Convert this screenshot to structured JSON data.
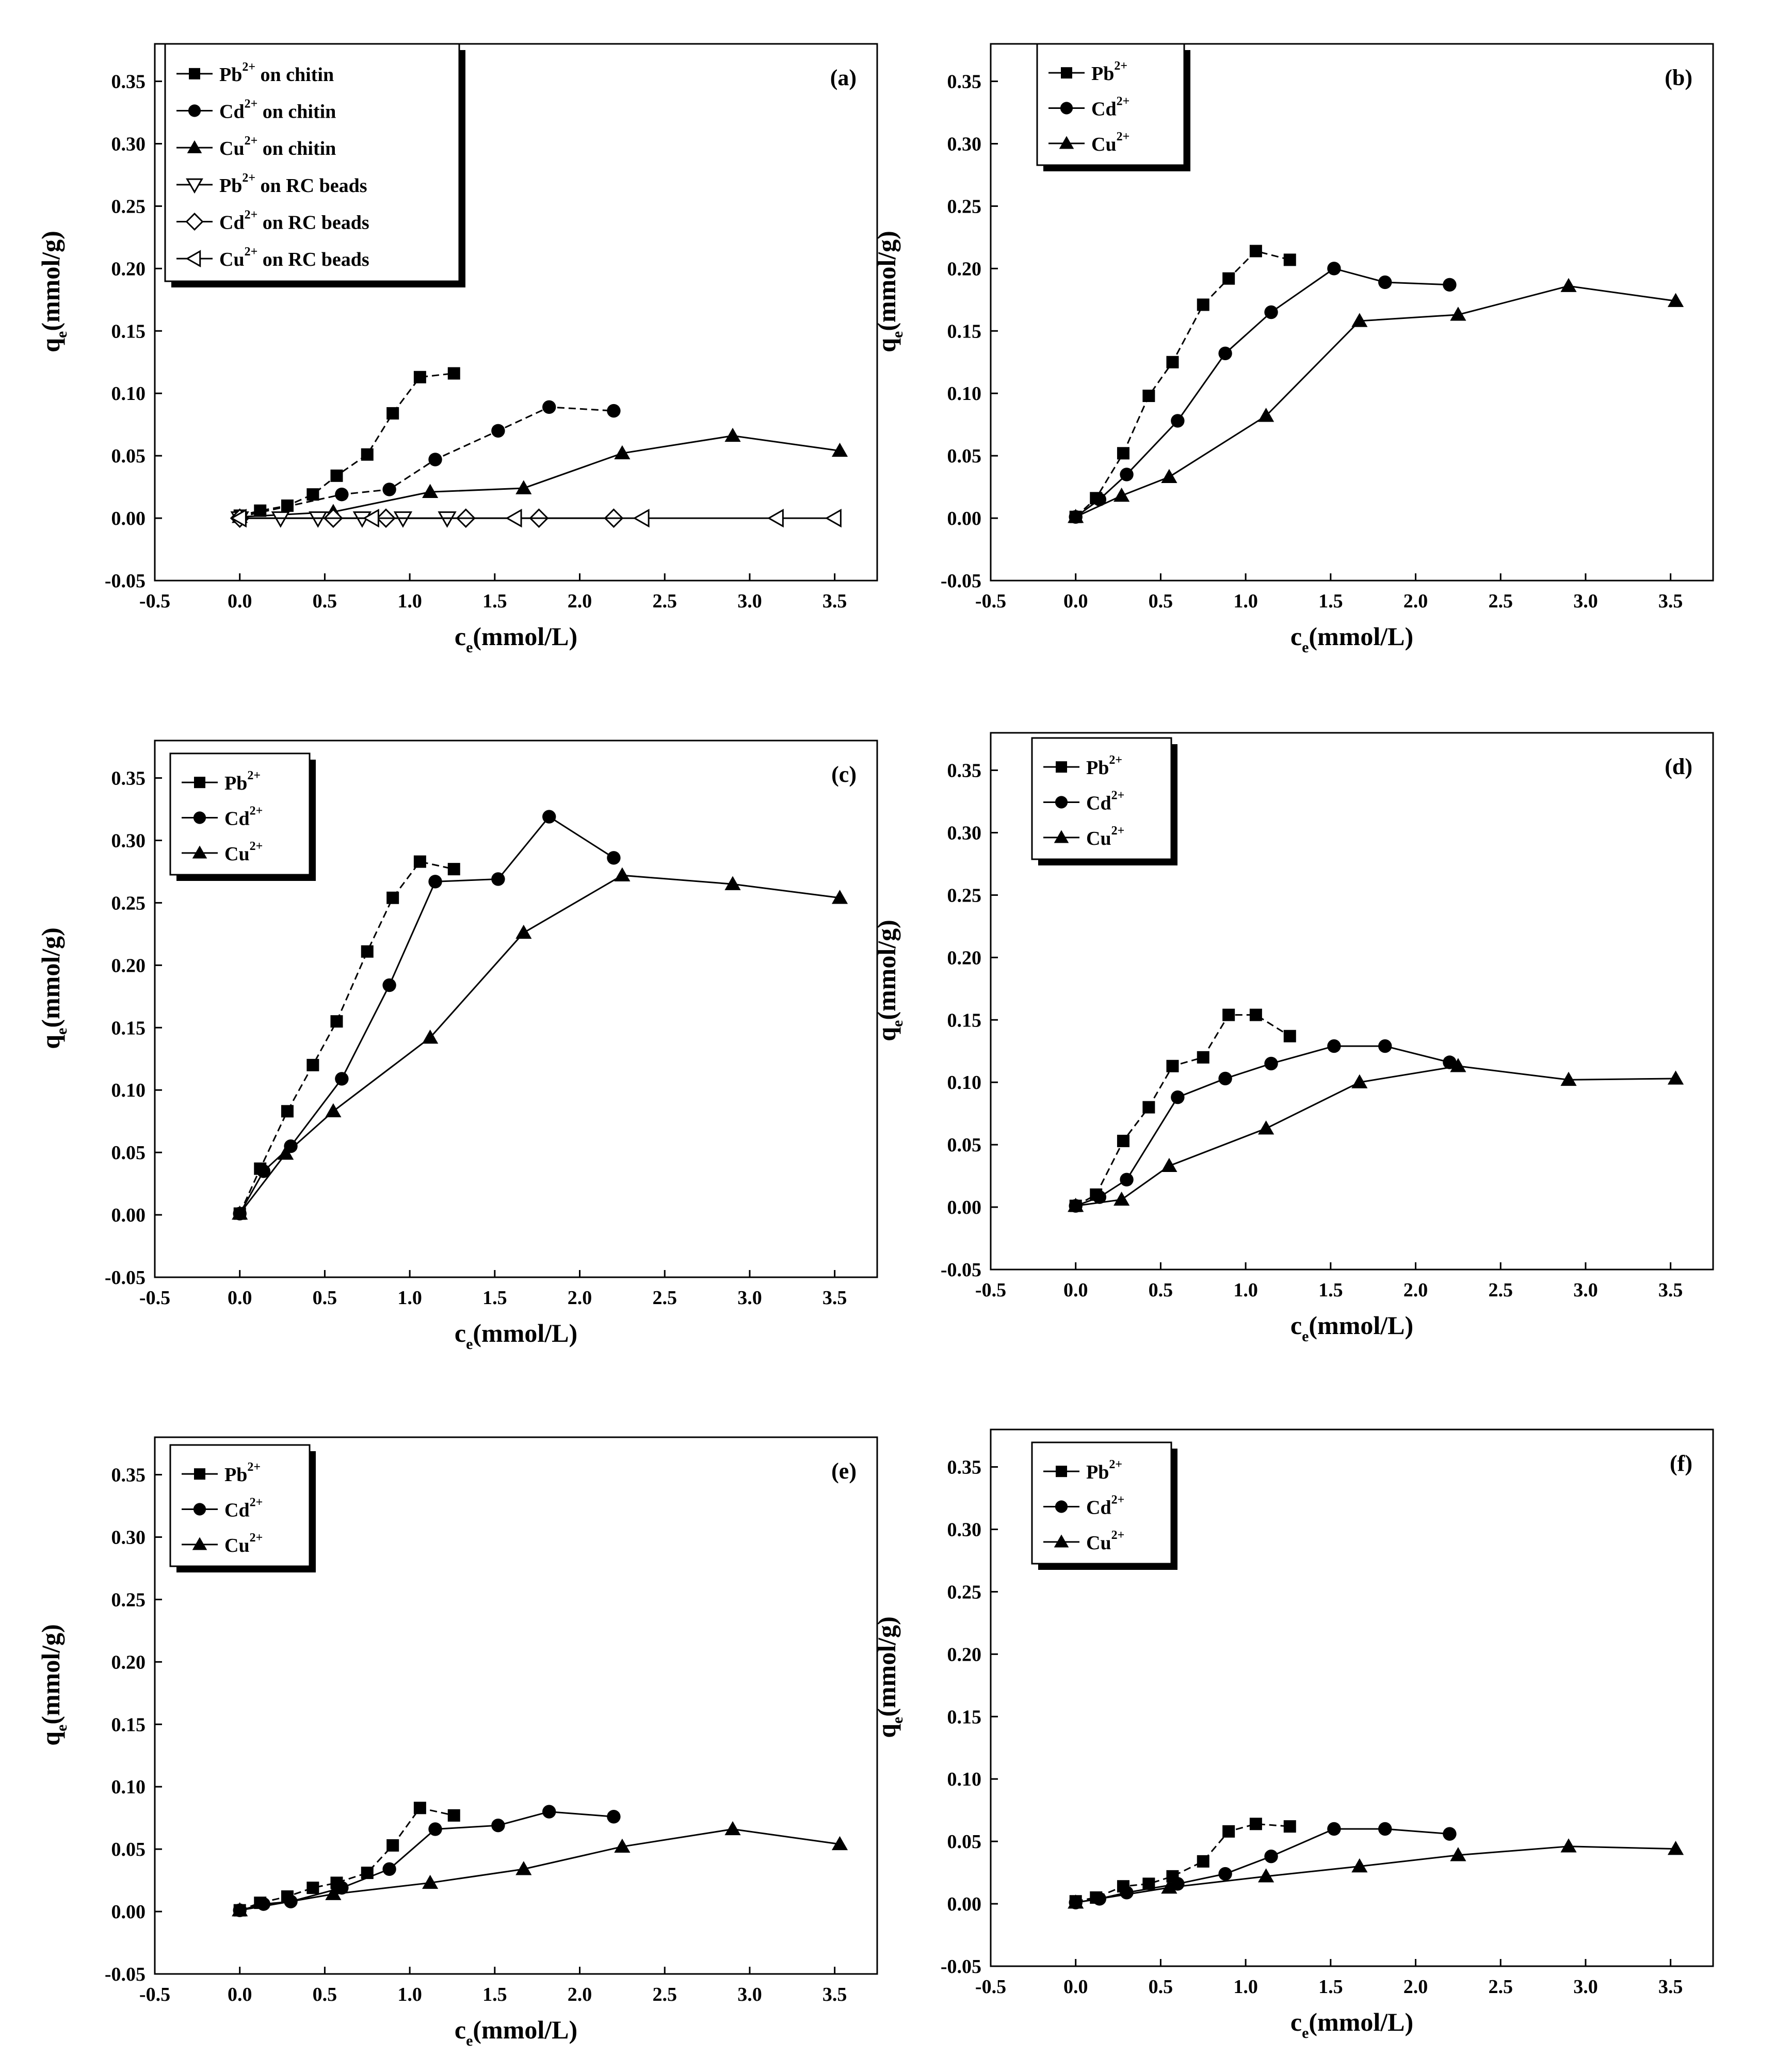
{
  "chart_data": [
    {
      "type": "line",
      "panel": "(a)",
      "xlabel": "c",
      "xlabel_sub": "e",
      "xlabel_unit": "(mmol/L)",
      "ylabel": "q",
      "ylabel_sub": "e",
      "ylabel_unit": "(mmol/g)",
      "xlim": [
        -0.5,
        3.75
      ],
      "ylim": [
        -0.05,
        0.38
      ],
      "xticks": [
        "-0.5",
        "0.0",
        "0.5",
        "1.0",
        "1.5",
        "2.0",
        "2.5",
        "3.0",
        "3.5"
      ],
      "yticks": [
        "-0.05",
        "0.00",
        "0.05",
        "0.10",
        "0.15",
        "0.20",
        "0.25",
        "0.30",
        "0.35"
      ],
      "legend": [
        {
          "ion": "Pb",
          "sup": "2+",
          "suffix": "on chitin",
          "marker": "square"
        },
        {
          "ion": "Cd",
          "sup": "2+",
          "suffix": "on chitin",
          "marker": "circle"
        },
        {
          "ion": "Cu",
          "sup": "2+",
          "suffix": "on chitin",
          "marker": "triangle"
        },
        {
          "ion": "Pb",
          "sup": "2+",
          "suffix": "on RC beads",
          "marker": "triangle-down-open"
        },
        {
          "ion": "Cd",
          "sup": "2+",
          "suffix": "on RC beads",
          "marker": "diamond-open"
        },
        {
          "ion": "Cu",
          "sup": "2+",
          "suffix": "on RC beads",
          "marker": "triangle-left-open"
        }
      ],
      "series": [
        {
          "name": "Pb2+ on chitin",
          "marker": "square",
          "dashed": true,
          "x": [
            0,
            0.12,
            0.28,
            0.43,
            0.57,
            0.75,
            0.9,
            1.06,
            1.26
          ],
          "y": [
            0.002,
            0.006,
            0.01,
            0.019,
            0.034,
            0.051,
            0.084,
            0.113,
            0.116
          ]
        },
        {
          "name": "Cd2+ on chitin",
          "marker": "circle",
          "dashed": true,
          "x": [
            0,
            0.6,
            0.88,
            1.15,
            1.52,
            1.82,
            2.2
          ],
          "y": [
            0.001,
            0.019,
            0.023,
            0.047,
            0.07,
            0.089,
            0.086
          ]
        },
        {
          "name": "Cu2+ on chitin",
          "marker": "triangle",
          "dashed": false,
          "x": [
            0,
            0.55,
            1.12,
            1.67,
            2.25,
            2.9,
            3.53
          ],
          "y": [
            0.001,
            0.005,
            0.021,
            0.024,
            0.052,
            0.066,
            0.054
          ]
        },
        {
          "name": "Pb2+ on RC beads",
          "marker": "triangle-down-open",
          "dashed": false,
          "x": [
            0,
            0.24,
            0.46,
            0.72,
            0.96,
            1.22
          ],
          "y": [
            0,
            0,
            0,
            0,
            0,
            0
          ]
        },
        {
          "name": "Cd2+ on RC beads",
          "marker": "diamond-open",
          "dashed": false,
          "x": [
            0,
            0.55,
            0.86,
            1.33,
            1.76,
            2.2
          ],
          "y": [
            0,
            0,
            0,
            0,
            0,
            0
          ]
        },
        {
          "name": "Cu2+ on RC beads",
          "marker": "triangle-left-open",
          "dashed": false,
          "x": [
            0,
            0.78,
            1.62,
            2.37,
            3.16,
            3.5
          ],
          "y": [
            0,
            0,
            0,
            0,
            0,
            0
          ]
        }
      ]
    },
    {
      "type": "line",
      "panel": "(b)",
      "xlabel": "c",
      "xlabel_sub": "e",
      "xlabel_unit": "(mmol/L)",
      "ylabel": "q",
      "ylabel_sub": "e",
      "ylabel_unit": "(mmol/g)",
      "xlim": [
        -0.5,
        3.75
      ],
      "ylim": [
        -0.05,
        0.38
      ],
      "xticks": [
        "-0.5",
        "0.0",
        "0.5",
        "1.0",
        "1.5",
        "2.0",
        "2.5",
        "3.0",
        "3.5"
      ],
      "yticks": [
        "-0.05",
        "0.00",
        "0.05",
        "0.10",
        "0.15",
        "0.20",
        "0.25",
        "0.30",
        "0.35"
      ],
      "legend": [
        {
          "ion": "Pb",
          "sup": "2+",
          "suffix": "",
          "marker": "square"
        },
        {
          "ion": "Cd",
          "sup": "2+",
          "suffix": "",
          "marker": "circle"
        },
        {
          "ion": "Cu",
          "sup": "2+",
          "suffix": "",
          "marker": "triangle"
        }
      ],
      "series": [
        {
          "name": "Pb2+",
          "marker": "square",
          "dashed": true,
          "x": [
            0,
            0.12,
            0.28,
            0.43,
            0.57,
            0.75,
            0.9,
            1.06,
            1.26
          ],
          "y": [
            0.001,
            0.016,
            0.052,
            0.098,
            0.125,
            0.171,
            0.192,
            0.214,
            0.207
          ]
        },
        {
          "name": "Cd2+",
          "marker": "circle",
          "dashed": false,
          "x": [
            0,
            0.14,
            0.3,
            0.6,
            0.88,
            1.15,
            1.52,
            1.82,
            2.2
          ],
          "y": [
            0.001,
            0.015,
            0.035,
            0.078,
            0.132,
            0.165,
            0.2,
            0.189,
            0.187
          ]
        },
        {
          "name": "Cu2+",
          "marker": "triangle",
          "dashed": false,
          "x": [
            0,
            0.27,
            0.55,
            1.12,
            1.67,
            2.25,
            2.9,
            3.53
          ],
          "y": [
            0.001,
            0.018,
            0.033,
            0.082,
            0.158,
            0.163,
            0.186,
            0.174
          ]
        }
      ]
    },
    {
      "type": "line",
      "panel": "(c)",
      "xlabel": "c",
      "xlabel_sub": "e",
      "xlabel_unit": "(mmol/L)",
      "ylabel": "q",
      "ylabel_sub": "e",
      "ylabel_unit": "(mmol/g)",
      "xlim": [
        -0.5,
        3.75
      ],
      "ylim": [
        -0.05,
        0.38
      ],
      "xticks": [
        "-0.5",
        "0.0",
        "0.5",
        "1.0",
        "1.5",
        "2.0",
        "2.5",
        "3.0",
        "3.5"
      ],
      "yticks": [
        "-0.05",
        "0.00",
        "0.05",
        "0.10",
        "0.15",
        "0.20",
        "0.25",
        "0.30",
        "0.35"
      ],
      "legend": [
        {
          "ion": "Pb",
          "sup": "2+",
          "suffix": "",
          "marker": "square"
        },
        {
          "ion": "Cd",
          "sup": "2+",
          "suffix": "",
          "marker": "circle"
        },
        {
          "ion": "Cu",
          "sup": "2+",
          "suffix": "",
          "marker": "triangle"
        }
      ],
      "series": [
        {
          "name": "Pb2+",
          "marker": "square",
          "dashed": true,
          "x": [
            0,
            0.12,
            0.28,
            0.43,
            0.57,
            0.75,
            0.9,
            1.06,
            1.26
          ],
          "y": [
            0.001,
            0.037,
            0.083,
            0.12,
            0.155,
            0.211,
            0.254,
            0.283,
            0.277
          ]
        },
        {
          "name": "Cd2+",
          "marker": "circle",
          "dashed": false,
          "x": [
            0,
            0.14,
            0.3,
            0.6,
            0.88,
            1.15,
            1.52,
            1.82,
            2.2
          ],
          "y": [
            0.001,
            0.035,
            0.055,
            0.109,
            0.184,
            0.267,
            0.269,
            0.319,
            0.286
          ]
        },
        {
          "name": "Cu2+",
          "marker": "triangle",
          "dashed": false,
          "x": [
            0,
            0.27,
            0.55,
            1.12,
            1.67,
            2.25,
            2.9,
            3.53
          ],
          "y": [
            0.001,
            0.049,
            0.083,
            0.142,
            0.226,
            0.272,
            0.265,
            0.254
          ]
        }
      ]
    },
    {
      "type": "line",
      "panel": "(d)",
      "xlabel": "c",
      "xlabel_sub": "e",
      "xlabel_unit": "(mmol/L)",
      "ylabel": "q",
      "ylabel_sub": "e",
      "ylabel_unit": "(mmol/g)",
      "xlim": [
        -0.5,
        3.75
      ],
      "ylim": [
        -0.05,
        0.38
      ],
      "xticks": [
        "-0.5",
        "0.0",
        "0.5",
        "1.0",
        "1.5",
        "2.0",
        "2.5",
        "3.0",
        "3.5"
      ],
      "yticks": [
        "-0.05",
        "0.00",
        "0.05",
        "0.10",
        "0.15",
        "0.20",
        "0.25",
        "0.30",
        "0.35"
      ],
      "legend": [
        {
          "ion": "Pb",
          "sup": "2+",
          "suffix": "",
          "marker": "square"
        },
        {
          "ion": "Cd",
          "sup": "2+",
          "suffix": "",
          "marker": "circle"
        },
        {
          "ion": "Cu",
          "sup": "2+",
          "suffix": "",
          "marker": "triangle"
        }
      ],
      "series": [
        {
          "name": "Pb2+",
          "marker": "square",
          "dashed": true,
          "x": [
            0,
            0.12,
            0.28,
            0.43,
            0.57,
            0.75,
            0.9,
            1.06,
            1.26
          ],
          "y": [
            0.001,
            0.01,
            0.053,
            0.08,
            0.113,
            0.12,
            0.154,
            0.154,
            0.137
          ]
        },
        {
          "name": "Cd2+",
          "marker": "circle",
          "dashed": false,
          "x": [
            0,
            0.14,
            0.3,
            0.6,
            0.88,
            1.15,
            1.52,
            1.82,
            2.2
          ],
          "y": [
            0.001,
            0.008,
            0.022,
            0.088,
            0.103,
            0.115,
            0.129,
            0.129,
            0.116
          ]
        },
        {
          "name": "Cu2+",
          "marker": "triangle",
          "dashed": false,
          "x": [
            0,
            0.27,
            0.55,
            1.12,
            1.67,
            2.25,
            2.9,
            3.53
          ],
          "y": [
            0.001,
            0.006,
            0.033,
            0.063,
            0.1,
            0.113,
            0.102,
            0.103
          ]
        }
      ]
    },
    {
      "type": "line",
      "panel": "(e)",
      "xlabel": "c",
      "xlabel_sub": "e",
      "xlabel_unit": "(mmol/L)",
      "ylabel": "q",
      "ylabel_sub": "e",
      "ylabel_unit": "(mmol/g)",
      "xlim": [
        -0.5,
        3.75
      ],
      "ylim": [
        -0.05,
        0.38
      ],
      "xticks": [
        "-0.5",
        "0.0",
        "0.5",
        "1.0",
        "1.5",
        "2.0",
        "2.5",
        "3.0",
        "3.5"
      ],
      "yticks": [
        "-0.05",
        "0.00",
        "0.05",
        "0.10",
        "0.15",
        "0.20",
        "0.25",
        "0.30",
        "0.35"
      ],
      "legend": [
        {
          "ion": "Pb",
          "sup": "2+",
          "suffix": "",
          "marker": "square"
        },
        {
          "ion": "Cd",
          "sup": "2+",
          "suffix": "",
          "marker": "circle"
        },
        {
          "ion": "Cu",
          "sup": "2+",
          "suffix": "",
          "marker": "triangle"
        }
      ],
      "series": [
        {
          "name": "Pb2+",
          "marker": "square",
          "dashed": true,
          "x": [
            0,
            0.12,
            0.28,
            0.43,
            0.57,
            0.75,
            0.9,
            1.06,
            1.26
          ],
          "y": [
            0.001,
            0.007,
            0.012,
            0.019,
            0.023,
            0.031,
            0.053,
            0.083,
            0.077
          ]
        },
        {
          "name": "Cd2+",
          "marker": "circle",
          "dashed": false,
          "x": [
            0,
            0.14,
            0.3,
            0.6,
            0.88,
            1.15,
            1.52,
            1.82,
            2.2
          ],
          "y": [
            0.001,
            0.006,
            0.008,
            0.019,
            0.034,
            0.066,
            0.069,
            0.08,
            0.076
          ]
        },
        {
          "name": "Cu2+",
          "marker": "triangle",
          "dashed": false,
          "x": [
            0,
            0.55,
            1.12,
            1.67,
            2.25,
            2.9,
            3.53
          ],
          "y": [
            0.001,
            0.014,
            0.023,
            0.034,
            0.052,
            0.066,
            0.054
          ]
        }
      ]
    },
    {
      "type": "line",
      "panel": "(f)",
      "xlabel": "c",
      "xlabel_sub": "e",
      "xlabel_unit": "(mmol/L)",
      "ylabel": "q",
      "ylabel_sub": "e",
      "ylabel_unit": "(mmol/g)",
      "xlim": [
        -0.5,
        3.75
      ],
      "ylim": [
        -0.05,
        0.38
      ],
      "xticks": [
        "-0.5",
        "0.0",
        "0.5",
        "1.0",
        "1.5",
        "2.0",
        "2.5",
        "3.0",
        "3.5"
      ],
      "yticks": [
        "-0.05",
        "0.00",
        "0.05",
        "0.10",
        "0.15",
        "0.20",
        "0.25",
        "0.30",
        "0.35"
      ],
      "legend": [
        {
          "ion": "Pb",
          "sup": "2+",
          "suffix": "",
          "marker": "square"
        },
        {
          "ion": "Cd",
          "sup": "2+",
          "suffix": "",
          "marker": "circle"
        },
        {
          "ion": "Cu",
          "sup": "2+",
          "suffix": "",
          "marker": "triangle"
        }
      ],
      "series": [
        {
          "name": "Pb2+",
          "marker": "square",
          "dashed": true,
          "x": [
            0,
            0.12,
            0.28,
            0.43,
            0.57,
            0.75,
            0.9,
            1.06,
            1.26
          ],
          "y": [
            0.002,
            0.005,
            0.014,
            0.016,
            0.022,
            0.034,
            0.058,
            0.064,
            0.062
          ]
        },
        {
          "name": "Cd2+",
          "marker": "circle",
          "dashed": false,
          "x": [
            0,
            0.14,
            0.3,
            0.6,
            0.88,
            1.15,
            1.52,
            1.82,
            2.2
          ],
          "y": [
            0.001,
            0.004,
            0.009,
            0.016,
            0.024,
            0.038,
            0.06,
            0.06,
            0.056
          ]
        },
        {
          "name": "Cu2+",
          "marker": "triangle",
          "dashed": false,
          "x": [
            0,
            0.55,
            1.12,
            1.67,
            2.25,
            2.9,
            3.53
          ],
          "y": [
            0.001,
            0.013,
            0.022,
            0.03,
            0.039,
            0.046,
            0.044
          ]
        }
      ]
    }
  ]
}
